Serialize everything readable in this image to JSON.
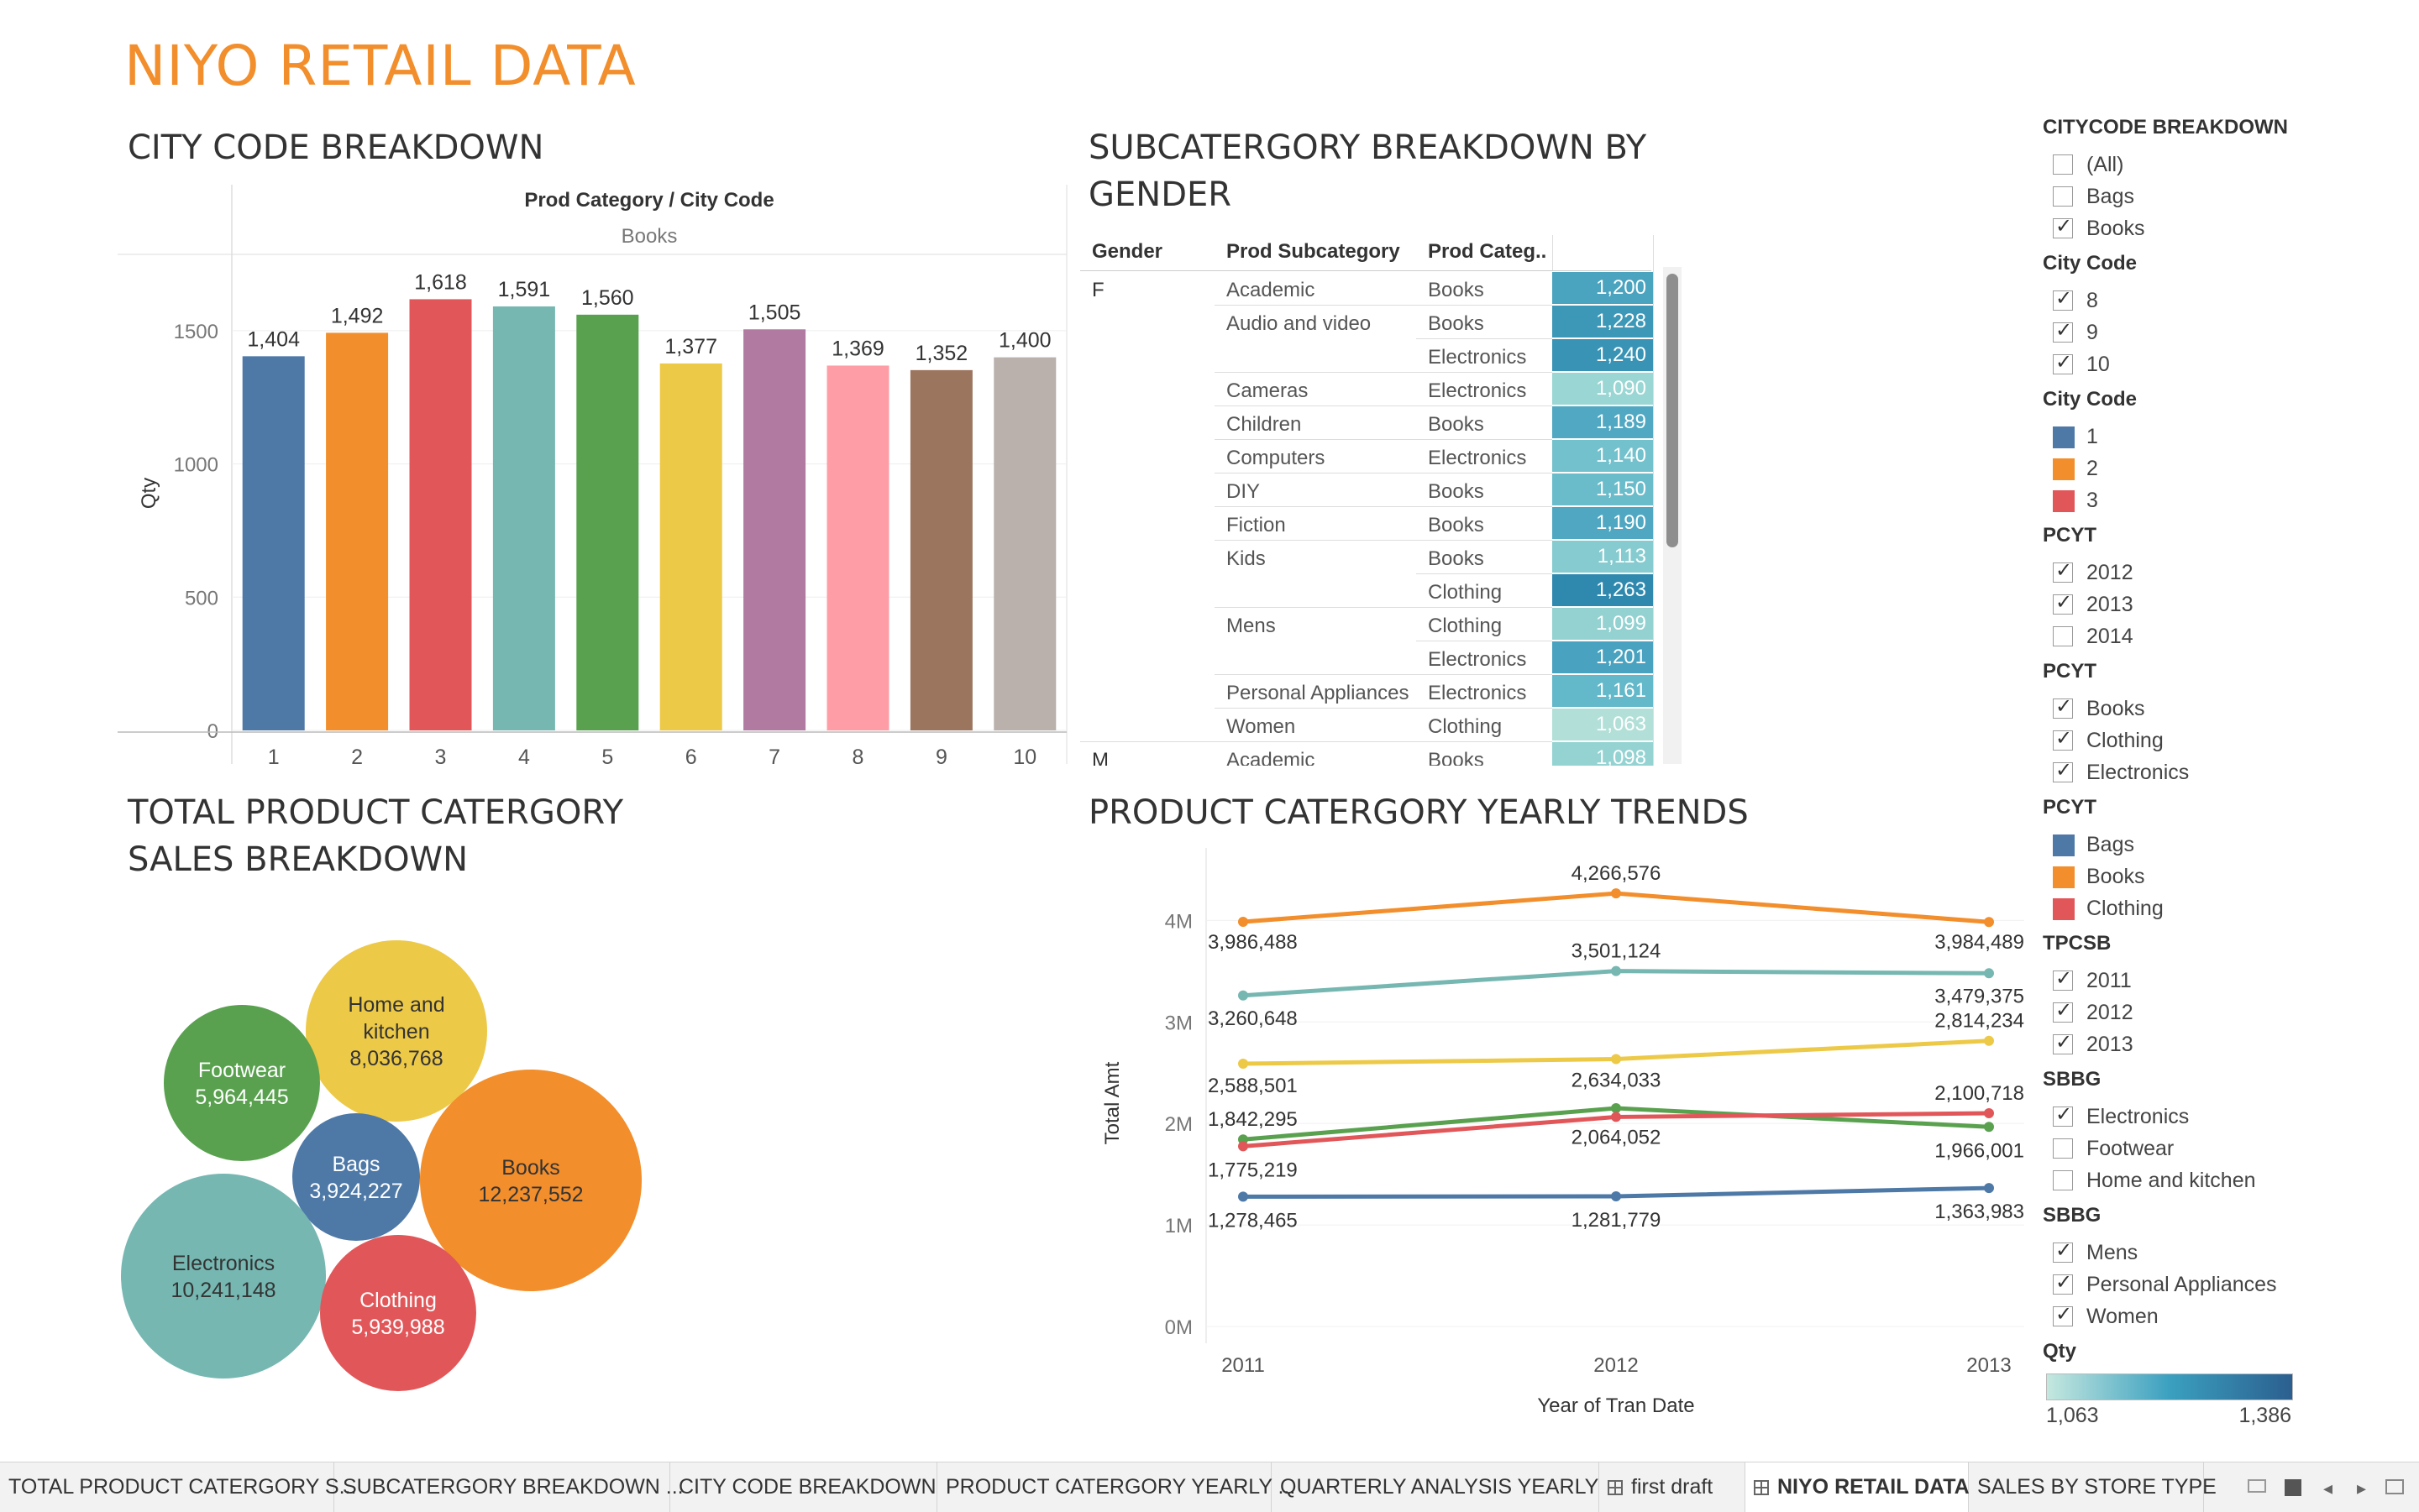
{
  "dashboard_title": "NIYO RETAIL DATA",
  "city_code_breakdown": {
    "title": "CITY CODE BREAKDOWN",
    "header": "Prod Category / City Code",
    "category": "Books",
    "ylabel": "Qty",
    "colors": [
      "#4e79a7",
      "#f28e2b",
      "#e15759",
      "#76b7b2",
      "#59a14f",
      "#edc948",
      "#b07aa1",
      "#ff9da7",
      "#9c755f",
      "#bab0ac"
    ]
  },
  "subcategory_breakdown": {
    "title_line1": "SUBCATERGORY BREAKDOWN BY",
    "title_line2": "GENDER",
    "columns": [
      "Gender",
      "Prod Subcategory",
      "Prod Categ.."
    ],
    "rows": [
      {
        "gender": "F",
        "sub": "Academic",
        "cat": "Books",
        "val": "1,200",
        "color": "#4aa3bf"
      },
      {
        "gender": "",
        "sub": "Audio and video",
        "cat": "Books",
        "val": "1,228",
        "color": "#3d98b8"
      },
      {
        "gender": "",
        "sub": "",
        "cat": "Electronics",
        "val": "1,240",
        "color": "#3893b5"
      },
      {
        "gender": "",
        "sub": "Cameras",
        "cat": "Electronics",
        "val": "1,090",
        "color": "#9ad6d3"
      },
      {
        "gender": "",
        "sub": "Children",
        "cat": "Books",
        "val": "1,189",
        "color": "#50a8c2"
      },
      {
        "gender": "",
        "sub": "Computers",
        "cat": "Electronics",
        "val": "1,140",
        "color": "#73c1cc"
      },
      {
        "gender": "",
        "sub": "DIY",
        "cat": "Books",
        "val": "1,150",
        "color": "#6abccb"
      },
      {
        "gender": "",
        "sub": "Fiction",
        "cat": "Books",
        "val": "1,190",
        "color": "#4fa7c2"
      },
      {
        "gender": "",
        "sub": "Kids",
        "cat": "Books",
        "val": "1,113",
        "color": "#85cbcf"
      },
      {
        "gender": "",
        "sub": "",
        "cat": "Clothing",
        "val": "1,263",
        "color": "#2f89af"
      },
      {
        "gender": "",
        "sub": "Mens",
        "cat": "Clothing",
        "val": "1,099",
        "color": "#93d2d1"
      },
      {
        "gender": "",
        "sub": "",
        "cat": "Electronics",
        "val": "1,201",
        "color": "#49a2bf"
      },
      {
        "gender": "",
        "sub": "Personal Appliances",
        "cat": "Electronics",
        "val": "1,161",
        "color": "#63b8c9"
      },
      {
        "gender": "",
        "sub": "Women",
        "cat": "Clothing",
        "val": "1,063",
        "color": "#b2e0d8"
      },
      {
        "gender": "M",
        "sub": "Academic",
        "cat": "Books",
        "val": "1,098",
        "color": "#94d3d2"
      }
    ]
  },
  "bubble_chart": {
    "title_line1": "TOTAL PRODUCT CATERGORY",
    "title_line2": "SALES BREAKDOWN",
    "bubbles": [
      {
        "name": "Home and kitchen",
        "value": "8,036,768",
        "color": "#edc948",
        "text": "#333333"
      },
      {
        "name": "Footwear",
        "value": "5,964,445",
        "color": "#59a14f",
        "text": "#ffffff"
      },
      {
        "name": "Bags",
        "value": "3,924,227",
        "color": "#4e79a7",
        "text": "#ffffff"
      },
      {
        "name": "Books",
        "value": "12,237,552",
        "color": "#f28e2b",
        "text": "#333333"
      },
      {
        "name": "Electronics",
        "value": "10,241,148",
        "color": "#76b7b2",
        "text": "#333333"
      },
      {
        "name": "Clothing",
        "value": "5,939,988",
        "color": "#e15759",
        "text": "#ffffff"
      }
    ]
  },
  "yearly_trends": {
    "title": "PRODUCT CATERGORY YEARLY TRENDS",
    "xlabel": "Year of Tran Date",
    "ylabel": "Total Amt"
  },
  "filters": {
    "citycode_breakdown": {
      "title": "CITYCODE BREAKDOWN",
      "items": [
        {
          "label": "(All)",
          "checked": false
        },
        {
          "label": "Bags",
          "checked": false
        },
        {
          "label": "Books",
          "checked": true
        }
      ]
    },
    "city_code": {
      "title": "City Code",
      "items": [
        {
          "label": "8",
          "checked": true
        },
        {
          "label": "9",
          "checked": true
        },
        {
          "label": "10",
          "checked": true
        }
      ]
    },
    "city_code_legend": {
      "title": "City Code",
      "items": [
        {
          "label": "1",
          "color": "#4e79a7"
        },
        {
          "label": "2",
          "color": "#f28e2b"
        },
        {
          "label": "3",
          "color": "#e15759"
        }
      ]
    },
    "pcyt_years": {
      "title": "PCYT",
      "items": [
        {
          "label": "2012",
          "checked": true
        },
        {
          "label": "2013",
          "checked": true
        },
        {
          "label": "2014",
          "checked": false
        }
      ]
    },
    "pcyt_categories": {
      "title": "PCYT",
      "items": [
        {
          "label": "Books",
          "checked": true
        },
        {
          "label": "Clothing",
          "checked": true
        },
        {
          "label": "Electronics",
          "checked": true
        }
      ]
    },
    "pcyt_legend": {
      "title": "PCYT",
      "items": [
        {
          "label": "Bags",
          "color": "#4e79a7"
        },
        {
          "label": "Books",
          "color": "#f28e2b"
        },
        {
          "label": "Clothing",
          "color": "#e15759"
        }
      ]
    },
    "tpcsb": {
      "title": "TPCSB",
      "items": [
        {
          "label": "2011",
          "checked": true
        },
        {
          "label": "2012",
          "checked": true
        },
        {
          "label": "2013",
          "checked": true
        }
      ]
    },
    "sbbg_categories": {
      "title": "SBBG",
      "items": [
        {
          "label": "Electronics",
          "checked": true
        },
        {
          "label": "Footwear",
          "checked": false
        },
        {
          "label": "Home and kitchen",
          "checked": false
        }
      ]
    },
    "sbbg_subcategories": {
      "title": "SBBG",
      "items": [
        {
          "label": "Mens",
          "checked": true
        },
        {
          "label": "Personal Appliances",
          "checked": true
        },
        {
          "label": "Women",
          "checked": true
        }
      ]
    },
    "qty_legend": {
      "title": "Qty",
      "min": "1,063",
      "max": "1,386"
    }
  },
  "tabs": [
    {
      "label": "TOTAL PRODUCT CATERGORY S...",
      "icon": false,
      "active": false
    },
    {
      "label": "SUBCATERGORY BREAKDOWN ...",
      "icon": false,
      "active": false
    },
    {
      "label": "CITY CODE BREAKDOWN",
      "icon": false,
      "active": false
    },
    {
      "label": "PRODUCT CATERGORY YEARLY ...",
      "icon": false,
      "active": false
    },
    {
      "label": "QUARTERLY ANALYSIS YEARLY",
      "icon": false,
      "active": false
    },
    {
      "label": "first draft",
      "icon": true,
      "active": false
    },
    {
      "label": "NIYO RETAIL DATA",
      "icon": true,
      "active": true
    },
    {
      "label": "SALES BY STORE TYPE",
      "icon": false,
      "active": false
    }
  ],
  "chart_data": [
    {
      "type": "bar",
      "title": "CITY CODE BREAKDOWN",
      "categories": [
        "1",
        "2",
        "3",
        "4",
        "5",
        "6",
        "7",
        "8",
        "9",
        "10"
      ],
      "values": [
        1404,
        1492,
        1618,
        1591,
        1560,
        1377,
        1505,
        1369,
        1352,
        1400
      ],
      "value_labels": [
        "1,404",
        "1,492",
        "1,618",
        "1,591",
        "1,560",
        "1,377",
        "1,505",
        "1,369",
        "1,352",
        "1,400"
      ],
      "ylabel": "Qty",
      "xlabel": "City Code",
      "yticks": [
        0,
        500,
        1000,
        1500
      ],
      "ylim": [
        0,
        1780
      ]
    },
    {
      "type": "line",
      "title": "PRODUCT CATERGORY YEARLY TRENDS",
      "x": [
        "2011",
        "2012",
        "2013"
      ],
      "xlabel": "Year of Tran Date",
      "ylabel": "Total Amt",
      "yticks": [
        0,
        1000000,
        2000000,
        3000000,
        4000000
      ],
      "ytick_labels": [
        "0M",
        "1M",
        "2M",
        "3M",
        "4M"
      ],
      "ylim": [
        0,
        4400000
      ],
      "series": [
        {
          "color": "#f28e2b",
          "values": [
            3986488,
            4266576,
            3984489
          ],
          "labels": [
            "3,986,488",
            "4,266,576",
            "3,984,489"
          ]
        },
        {
          "color": "#76b7b2",
          "values": [
            3260648,
            3501124,
            3479375
          ],
          "labels": [
            "3,260,648",
            "3,501,124",
            "3,479,375"
          ]
        },
        {
          "color": "#edc948",
          "values": [
            2588501,
            2634033,
            2814234
          ],
          "labels": [
            "2,588,501",
            "2,634,033",
            "2,814,234"
          ]
        },
        {
          "color": "#59a14f",
          "values": [
            1842295,
            2150000,
            1966001
          ],
          "labels": [
            "1,842,295",
            "",
            "1,966,001"
          ]
        },
        {
          "color": "#e15759",
          "values": [
            1775219,
            2064052,
            2100718
          ],
          "labels": [
            "1,775,219",
            "2,064,052",
            "2,100,718"
          ]
        },
        {
          "color": "#4e79a7",
          "values": [
            1278465,
            1281779,
            1363983
          ],
          "labels": [
            "1,278,465",
            "1,281,779",
            "1,363,983"
          ]
        }
      ]
    }
  ]
}
